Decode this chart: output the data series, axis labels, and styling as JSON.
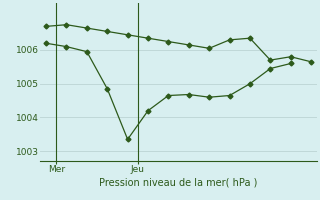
{
  "line1_x": [
    0,
    1,
    2,
    3,
    4,
    5,
    6,
    7,
    8,
    9,
    10,
    11,
    12,
    13
  ],
  "line1_y": [
    1006.7,
    1006.75,
    1006.65,
    1006.55,
    1006.45,
    1006.35,
    1006.25,
    1006.15,
    1006.05,
    1006.3,
    1006.35,
    1005.7,
    1005.8,
    1005.65
  ],
  "line2_x": [
    0,
    1,
    2,
    3,
    4,
    5,
    6,
    7,
    8,
    9,
    10,
    11,
    12,
    13
  ],
  "line2_y": [
    1006.2,
    1006.1,
    1005.95,
    1004.85,
    1003.35,
    1004.2,
    1004.65,
    1004.68,
    1004.6,
    1004.65,
    1005.0,
    1005.45,
    1005.6,
    null
  ],
  "color": "#2d5a1b",
  "background": "#d8eff0",
  "grid_color": "#c0d8d8",
  "yticks": [
    1003,
    1004,
    1005,
    1006
  ],
  "ylabel": "Pression niveau de la mer( hPa )",
  "mer_x": 0.5,
  "jeu_x": 4.5,
  "xlim": [
    -0.3,
    13.3
  ],
  "ylim": [
    1002.7,
    1007.4
  ]
}
